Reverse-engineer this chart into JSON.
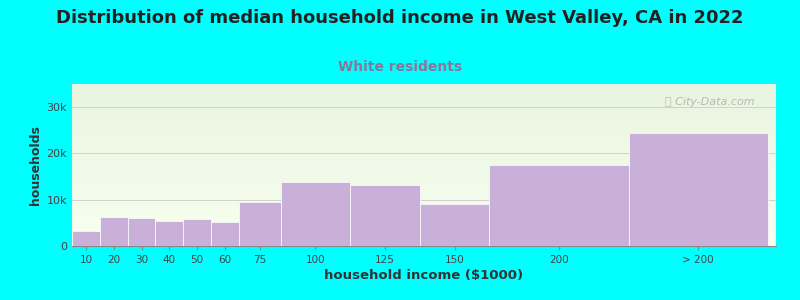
{
  "title": "Distribution of median household income in West Valley, CA in 2022",
  "subtitle": "White residents",
  "xlabel": "household income ($1000)",
  "ylabel": "households",
  "background_color": "#00FFFF",
  "plot_bg_top_color": "#e8f5e0",
  "plot_bg_bottom_color": "#f8fff0",
  "bar_color": "#c8b0d8",
  "bar_edge_color": "#b098c0",
  "title_fontsize": 13,
  "subtitle_fontsize": 10,
  "subtitle_color": "#887799",
  "values": [
    3200,
    6300,
    6000,
    5500,
    5800,
    5200,
    9500,
    13800,
    13200,
    9000,
    17500,
    24500
  ],
  "bar_widths": [
    10,
    10,
    10,
    10,
    10,
    10,
    15,
    25,
    25,
    25,
    50,
    50
  ],
  "bar_lefts": [
    0,
    10,
    20,
    30,
    40,
    50,
    60,
    75,
    100,
    125,
    150,
    200
  ],
  "xlim": [
    0,
    253
  ],
  "ylim": [
    0,
    35000
  ],
  "yticks": [
    0,
    10000,
    20000,
    30000
  ],
  "ytick_labels": [
    "0",
    "10k",
    "20k",
    "30k"
  ],
  "xtick_positions": [
    5,
    15,
    25,
    35,
    45,
    55,
    67.5,
    87.5,
    112.5,
    137.5,
    175,
    225
  ],
  "xtick_labels": [
    "10",
    "20",
    "30",
    "40",
    "50",
    "60",
    "75",
    "100",
    "125",
    "150",
    "200",
    "> 200"
  ],
  "watermark": "Ⓢ City-Data.com"
}
